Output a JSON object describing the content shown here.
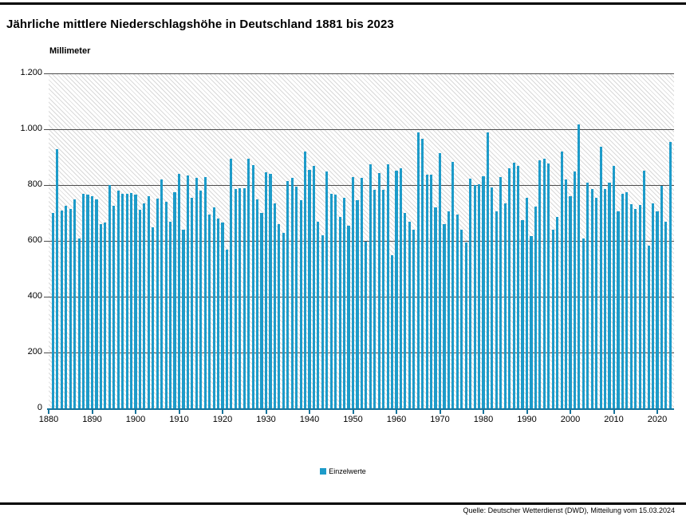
{
  "title": "Jährliche mittlere Niederschlagshöhe in Deutschland 1881 bis 2023",
  "unit_label": "Millimeter",
  "legend": {
    "label": "Einzelwerte",
    "swatch_color": "#1d9bc9"
  },
  "source": "Quelle: Deutscher Wetterdienst (DWD), Mitteilung vom 15.03.2024",
  "colors": {
    "bar": "#1d9bc9",
    "axis": "#17749c",
    "gridline": "#4d4d4d",
    "hatch": "#d9d9d9"
  },
  "chart_data": {
    "type": "bar",
    "title": "Jährliche mittlere Niederschlagshöhe in Deutschland 1881 bis 2023",
    "xlabel": "",
    "ylabel": "Millimeter",
    "ylim": [
      0,
      1200
    ],
    "grid": true,
    "legend_position": "bottom-center",
    "y_ticks": [
      {
        "value": 1200,
        "label": "1.200"
      },
      {
        "value": 1000,
        "label": "1.000"
      },
      {
        "value": 800,
        "label": "800"
      },
      {
        "value": 600,
        "label": "600"
      },
      {
        "value": 400,
        "label": "400"
      },
      {
        "value": 200,
        "label": "200"
      },
      {
        "value": 0,
        "label": "0"
      }
    ],
    "x_ticks": [
      1880,
      1890,
      1900,
      1910,
      1920,
      1930,
      1940,
      1950,
      1960,
      1970,
      1980,
      1990,
      2000,
      2010,
      2020
    ],
    "series": [
      {
        "name": "Einzelwerte",
        "start_year": 1881,
        "end_year": 2023,
        "values": [
          700,
          930,
          710,
          725,
          715,
          750,
          610,
          770,
          765,
          760,
          750,
          660,
          665,
          800,
          725,
          780,
          770,
          768,
          772,
          765,
          711,
          733,
          760,
          650,
          752,
          820,
          740,
          670,
          775,
          840,
          640,
          835,
          755,
          825,
          780,
          830,
          695,
          720,
          680,
          665,
          570,
          893,
          785,
          788,
          790,
          895,
          872,
          750,
          700,
          845,
          840,
          735,
          660,
          630,
          815,
          825,
          795,
          745,
          920,
          855,
          870,
          670,
          620,
          850,
          770,
          766,
          687,
          755,
          653,
          828,
          746,
          825,
          596,
          874,
          782,
          842,
          782,
          874,
          549,
          852,
          861,
          700,
          668,
          640,
          990,
          965,
          837,
          836,
          720,
          913,
          660,
          705,
          883,
          695,
          640,
          595,
          822,
          800,
          803,
          832,
          990,
          791,
          707,
          829,
          735,
          860,
          880,
          870,
          675,
          755,
          617,
          722,
          888,
          895,
          878,
          640,
          685,
          920,
          820,
          760,
          850,
          1016,
          610,
          810,
          785,
          755,
          938,
          785,
          810,
          870,
          705,
          770,
          775,
          731,
          715,
          729,
          851,
          582,
          734,
          706,
          796,
          670,
          955
        ]
      }
    ]
  }
}
